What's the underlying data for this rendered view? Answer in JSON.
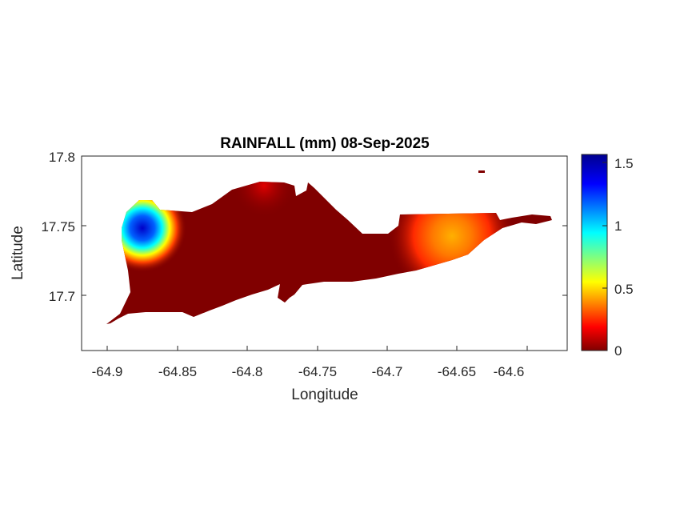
{
  "map": {
    "title": "RAINFALL (mm) 08-Sep-2025",
    "xlabel": "Longitude",
    "ylabel": "Latitude",
    "x_ticks": [
      "-64.9",
      "-64.85",
      "-64.8",
      "-64.75",
      "-64.7",
      "-64.65",
      "-64.6"
    ],
    "y_ticks": [
      "17.8",
      "17.75",
      "17.7"
    ],
    "colorbar_ticks": [
      "1.5",
      "1",
      "0.5",
      "0"
    ],
    "colormap": "jet",
    "colorbar_range": [
      0,
      1.55
    ],
    "base_color": "#800000",
    "hotspots": [
      {
        "name": "west-end-maximum",
        "lon": -64.878,
        "lat": 17.755,
        "value": 1.55
      },
      {
        "name": "east-end-moderate",
        "lon": -64.65,
        "lat": 17.74,
        "value": 0.4
      }
    ]
  }
}
